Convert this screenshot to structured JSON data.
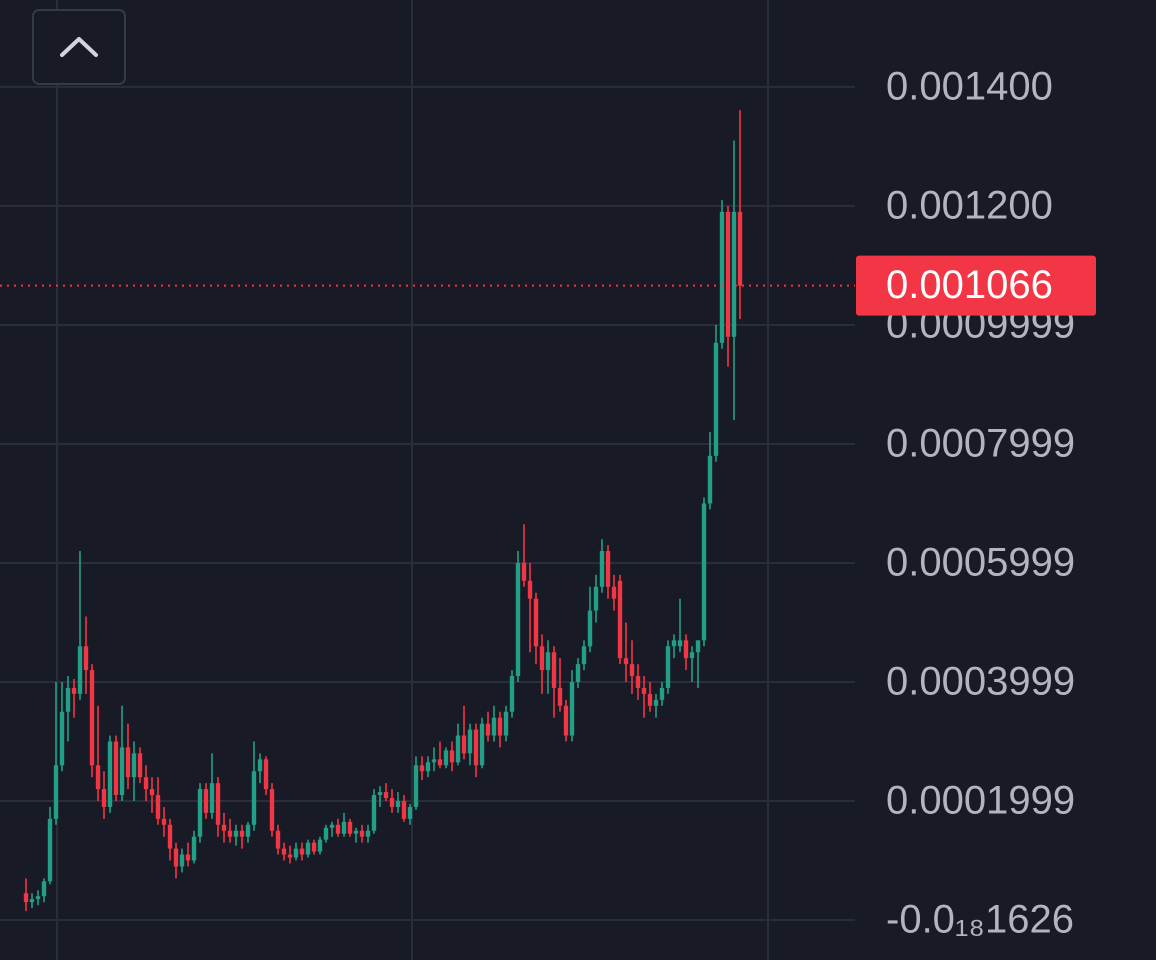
{
  "chart_data": {
    "type": "candlestick",
    "ylim": [
      -6.72e-05,
      0.001546
    ],
    "yticks": [
      {
        "value": 0.0014,
        "label": "0.001400"
      },
      {
        "value": 0.0012,
        "label": "0.001200"
      },
      0.0009999,
      0.0007999,
      0.0005999,
      0.0003999,
      0.0001999,
      {
        "value": -1.626e-19,
        "label": "-0.0₁₈1626"
      }
    ],
    "grid": true,
    "up_color": "#22a087",
    "down_color": "#f23645",
    "last_price": 0.001066,
    "open": [
      4.5e-05,
      3e-05,
      3.5e-05,
      4e-05,
      6.5e-05,
      0.00017,
      0.00026,
      0.00035,
      0.00039,
      0.00038,
      0.00046,
      0.00042,
      0.00026,
      0.00022,
      0.00019,
      0.0003,
      0.00021,
      0.00029,
      0.00024,
      0.00028,
      0.00024,
      0.00022,
      0.00021,
      0.00017,
      0.00016,
      0.00012,
      9e-05,
      0.00011,
      0.0001,
      0.00014,
      0.00022,
      0.00018,
      0.00023,
      0.00016,
      0.00015,
      0.00014,
      0.00015,
      0.00014,
      0.00016,
      0.00025,
      0.00027,
      0.00022,
      0.00015,
      0.00012,
      0.00011,
      0.000105,
      0.00012,
      0.00011,
      0.00013,
      0.000115,
      0.000135,
      0.000155,
      0.00016,
      0.000145,
      0.000165,
      0.000145,
      0.00015,
      0.00014,
      0.00015,
      0.00021,
      0.000215,
      0.000205,
      0.00019,
      0.0002,
      0.00017,
      0.00019,
      0.00026,
      0.00025,
      0.000265,
      0.00027,
      0.00026,
      0.000285,
      0.000265,
      0.00031,
      0.00028,
      0.00032,
      0.00026,
      0.00033,
      0.00031,
      0.00034,
      0.00031,
      0.00035,
      0.00041,
      0.0006,
      0.00057,
      0.00054,
      0.00046,
      0.00042,
      0.00045,
      0.00039,
      0.00036,
      0.00031,
      0.0004,
      0.00043,
      0.00046,
      0.00052,
      0.00056,
      0.00062,
      0.00056,
      0.00057,
      0.00044,
      0.00043,
      0.00041,
      0.00039,
      0.00038,
      0.00036,
      0.00037,
      0.00039,
      0.00046,
      0.00046,
      0.00047,
      0.00044,
      0.00045,
      0.00047,
      0.0007,
      0.00078,
      0.00097,
      0.00119,
      0.00098,
      0.00119
    ],
    "high": [
      7e-05,
      4.5e-05,
      5e-05,
      7e-05,
      0.00019,
      0.0004,
      0.0004,
      0.00041,
      0.000405,
      0.00062,
      0.00051,
      0.00043,
      0.00036,
      0.00025,
      0.00031,
      0.00031,
      0.00036,
      0.00033,
      0.0003,
      0.00029,
      0.00026,
      0.00024,
      0.00024,
      0.00019,
      0.00017,
      0.00013,
      0.00012,
      0.00013,
      0.00015,
      0.00023,
      0.00023,
      0.00028,
      0.00024,
      0.00018,
      0.00017,
      0.00016,
      0.00016,
      0.000165,
      0.0003,
      0.00028,
      0.000275,
      0.00023,
      0.00016,
      0.00013,
      0.000125,
      0.00013,
      0.00013,
      0.000135,
      0.000135,
      0.00014,
      0.00016,
      0.000165,
      0.00017,
      0.00018,
      0.00017,
      0.000155,
      0.00016,
      0.00016,
      0.00022,
      0.000225,
      0.00023,
      0.00022,
      0.000215,
      0.00021,
      0.000195,
      0.000275,
      0.000275,
      0.000275,
      0.00029,
      0.0003,
      0.00029,
      0.0003,
      0.00033,
      0.00036,
      0.00033,
      0.00033,
      0.00034,
      0.00035,
      0.00036,
      0.00035,
      0.00036,
      0.00042,
      0.00062,
      0.000665,
      0.0006,
      0.00055,
      0.00048,
      0.00047,
      0.00046,
      0.00044,
      0.00037,
      0.00042,
      0.00044,
      0.00047,
      0.00056,
      0.00058,
      0.00064,
      0.00063,
      0.00058,
      0.00058,
      0.0005,
      0.00047,
      0.00043,
      0.00041,
      0.0004,
      0.00038,
      0.0004,
      0.00047,
      0.00048,
      0.00054,
      0.00048,
      0.00046,
      0.00047,
      0.00071,
      0.00082,
      0.001,
      0.00121,
      0.0012,
      0.00131,
      0.001361
    ],
    "low": [
      1.5e-05,
      2e-05,
      2.5e-05,
      3e-05,
      6e-05,
      0.00016,
      0.00025,
      0.0003,
      0.00034,
      0.00037,
      0.00038,
      0.00024,
      0.0002,
      0.00017,
      0.00018,
      0.0002,
      0.0002,
      0.00022,
      0.0002,
      0.00023,
      0.0002,
      0.00018,
      0.00016,
      0.00014,
      0.0001,
      7e-05,
      8e-05,
      9e-05,
      9.5e-05,
      0.00013,
      0.00017,
      0.00017,
      0.00014,
      0.00013,
      0.00013,
      0.000125,
      0.00012,
      0.00013,
      0.00015,
      0.00023,
      0.00021,
      0.00014,
      0.00011,
      0.0001,
      9.5e-05,
      0.0001,
      0.0001,
      0.000105,
      0.00011,
      0.00011,
      0.00013,
      0.00014,
      0.00014,
      0.00014,
      0.00014,
      0.00013,
      0.00013,
      0.00013,
      0.000145,
      0.00019,
      0.0002,
      0.00018,
      0.00018,
      0.000165,
      0.00016,
      0.000185,
      0.000235,
      0.00024,
      0.00025,
      0.000255,
      0.000255,
      0.00025,
      0.00026,
      0.00027,
      0.00026,
      0.00024,
      0.000255,
      0.0003,
      0.0003,
      0.00029,
      0.0003,
      0.00034,
      0.0004,
      0.00056,
      0.00045,
      0.00043,
      0.00038,
      0.00038,
      0.00034,
      0.00035,
      0.0003,
      0.0003,
      0.00039,
      0.00042,
      0.00045,
      0.0005,
      0.00055,
      0.00054,
      0.00052,
      0.00043,
      0.0004,
      0.00038,
      0.00037,
      0.00034,
      0.00035,
      0.00034,
      0.00036,
      0.00038,
      0.00044,
      0.00045,
      0.00042,
      0.0004,
      0.00039,
      0.00046,
      0.00069,
      0.00077,
      0.00096,
      0.00093,
      0.00084,
      0.00101
    ],
    "close": [
      3e-05,
      3.5e-05,
      4e-05,
      6.5e-05,
      0.00017,
      0.00026,
      0.00035,
      0.00039,
      0.00038,
      0.00046,
      0.00042,
      0.00026,
      0.00022,
      0.00019,
      0.0003,
      0.00021,
      0.00029,
      0.00024,
      0.00028,
      0.00024,
      0.00022,
      0.00021,
      0.00017,
      0.00016,
      0.00012,
      9e-05,
      0.00011,
      0.0001,
      0.00014,
      0.00022,
      0.00018,
      0.00023,
      0.00016,
      0.00015,
      0.00014,
      0.00015,
      0.00014,
      0.00016,
      0.00025,
      0.00027,
      0.00022,
      0.00015,
      0.00012,
      0.00011,
      0.000105,
      0.00012,
      0.00011,
      0.00013,
      0.000115,
      0.000135,
      0.000155,
      0.00016,
      0.000145,
      0.000165,
      0.000145,
      0.00015,
      0.00014,
      0.00015,
      0.00021,
      0.000215,
      0.000205,
      0.00019,
      0.0002,
      0.00017,
      0.00019,
      0.00026,
      0.00025,
      0.000265,
      0.00027,
      0.00026,
      0.000285,
      0.000265,
      0.00031,
      0.00028,
      0.00032,
      0.00026,
      0.00033,
      0.00031,
      0.00034,
      0.00031,
      0.00035,
      0.00041,
      0.0006,
      0.00057,
      0.00054,
      0.00046,
      0.00042,
      0.00045,
      0.00039,
      0.00036,
      0.00031,
      0.0004,
      0.00043,
      0.00046,
      0.00052,
      0.00056,
      0.00062,
      0.00056,
      0.00054,
      0.00044,
      0.00043,
      0.00041,
      0.00039,
      0.00038,
      0.00036,
      0.00037,
      0.00039,
      0.00046,
      0.00047,
      0.00047,
      0.00044,
      0.00045,
      0.00047,
      0.0007,
      0.00078,
      0.00097,
      0.00119,
      0.00098,
      0.00119,
      0.001066
    ]
  }
}
